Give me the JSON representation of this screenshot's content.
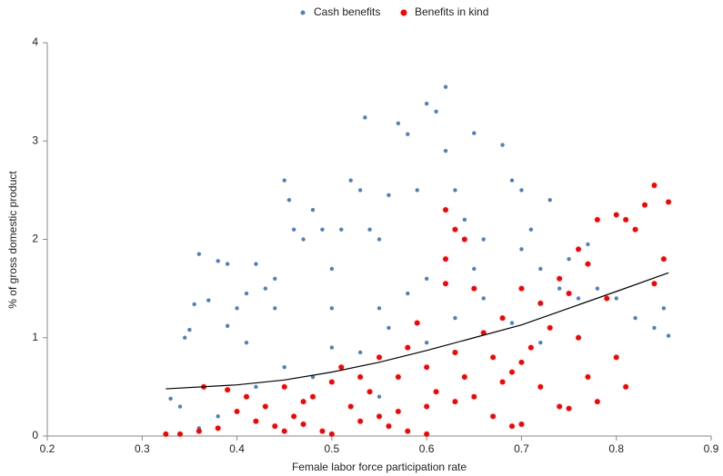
{
  "chart_data": {
    "type": "scatter",
    "x_label": "Female labor force participation rate",
    "y_label": "% of gross domestic product",
    "xlim": [
      0.2,
      0.9
    ],
    "xticks": [
      0.2,
      0.3,
      0.4,
      0.5,
      0.6,
      0.7,
      0.8,
      0.9
    ],
    "ylim": [
      0,
      4
    ],
    "yticks": [
      0,
      1,
      2,
      3,
      4
    ],
    "grid": false,
    "legend": "top",
    "series": [
      {
        "name": "Cash benefits",
        "color": "#4f81bd",
        "x": [
          0.33,
          0.34,
          0.345,
          0.35,
          0.355,
          0.36,
          0.37,
          0.38,
          0.39,
          0.39,
          0.4,
          0.41,
          0.41,
          0.42,
          0.43,
          0.44,
          0.44,
          0.45,
          0.455,
          0.46,
          0.47,
          0.48,
          0.49,
          0.5,
          0.5,
          0.51,
          0.52,
          0.53,
          0.535,
          0.54,
          0.55,
          0.56,
          0.57,
          0.58,
          0.59,
          0.6,
          0.61,
          0.62,
          0.62,
          0.63,
          0.64,
          0.65,
          0.66,
          0.68,
          0.69,
          0.7,
          0.7,
          0.71,
          0.72,
          0.73,
          0.74,
          0.75,
          0.76,
          0.77,
          0.78,
          0.8,
          0.82,
          0.84,
          0.85,
          0.855,
          0.6,
          0.62,
          0.65,
          0.58,
          0.55,
          0.5,
          0.45,
          0.42,
          0.48,
          0.53,
          0.56,
          0.6,
          0.66,
          0.69,
          0.72,
          0.36,
          0.38,
          0.55,
          0.63
        ],
        "values": [
          0.38,
          0.3,
          1.0,
          1.08,
          1.34,
          1.85,
          1.38,
          1.78,
          1.75,
          1.12,
          1.3,
          1.45,
          0.95,
          1.75,
          1.5,
          1.6,
          1.3,
          2.6,
          2.4,
          2.1,
          2.0,
          2.3,
          2.1,
          1.7,
          1.3,
          2.1,
          2.6,
          2.5,
          3.24,
          2.1,
          2.0,
          2.45,
          3.18,
          3.07,
          2.5,
          3.38,
          3.3,
          3.55,
          2.9,
          2.5,
          2.2,
          3.08,
          2.0,
          2.96,
          2.6,
          2.5,
          1.9,
          2.1,
          1.7,
          2.4,
          1.5,
          1.8,
          1.4,
          1.95,
          1.5,
          1.4,
          1.2,
          1.1,
          1.3,
          1.02,
          1.6,
          1.8,
          1.7,
          1.45,
          1.3,
          0.9,
          0.7,
          0.5,
          0.6,
          0.85,
          1.1,
          0.95,
          1.4,
          1.15,
          0.95,
          0.08,
          0.2,
          0.4,
          1.2
        ]
      },
      {
        "name": "Benefits in kind",
        "color": "#ff0000",
        "x": [
          0.325,
          0.34,
          0.36,
          0.365,
          0.38,
          0.39,
          0.4,
          0.41,
          0.42,
          0.43,
          0.44,
          0.45,
          0.46,
          0.47,
          0.48,
          0.49,
          0.5,
          0.51,
          0.52,
          0.53,
          0.54,
          0.55,
          0.56,
          0.57,
          0.58,
          0.59,
          0.6,
          0.6,
          0.61,
          0.62,
          0.62,
          0.63,
          0.64,
          0.62,
          0.63,
          0.64,
          0.65,
          0.66,
          0.67,
          0.67,
          0.68,
          0.69,
          0.7,
          0.7,
          0.71,
          0.72,
          0.72,
          0.73,
          0.74,
          0.74,
          0.75,
          0.75,
          0.76,
          0.77,
          0.77,
          0.78,
          0.78,
          0.79,
          0.8,
          0.81,
          0.82,
          0.83,
          0.84,
          0.855,
          0.85,
          0.84,
          0.8,
          0.81,
          0.76,
          0.68,
          0.65,
          0.55,
          0.45,
          0.5,
          0.58,
          0.6,
          0.53,
          0.47,
          0.57,
          0.63,
          0.7,
          0.69
        ],
        "values": [
          0.02,
          0.02,
          0.05,
          0.5,
          0.08,
          0.47,
          0.25,
          0.4,
          0.15,
          0.3,
          0.1,
          0.5,
          0.2,
          0.12,
          0.4,
          0.05,
          0.55,
          0.7,
          0.3,
          0.15,
          0.45,
          0.8,
          0.1,
          0.6,
          0.9,
          1.15,
          0.3,
          0.7,
          0.45,
          2.3,
          1.8,
          2.1,
          2.0,
          1.55,
          0.35,
          0.6,
          0.4,
          1.05,
          0.8,
          0.2,
          0.55,
          0.1,
          0.75,
          0.12,
          0.9,
          1.35,
          0.5,
          1.1,
          0.3,
          1.6,
          0.28,
          1.45,
          1.9,
          1.75,
          0.6,
          0.35,
          2.2,
          1.4,
          2.25,
          2.2,
          2.1,
          2.35,
          2.55,
          2.38,
          1.8,
          1.55,
          0.8,
          0.5,
          1.0,
          1.2,
          1.5,
          0.2,
          0.05,
          0.02,
          0.05,
          0.02,
          0.6,
          0.35,
          0.25,
          0.85,
          1.5,
          0.65
        ]
      }
    ],
    "trend": {
      "color": "#000000",
      "x": [
        0.325,
        0.4,
        0.45,
        0.5,
        0.55,
        0.6,
        0.65,
        0.7,
        0.75,
        0.8,
        0.855
      ],
      "values": [
        0.48,
        0.52,
        0.57,
        0.65,
        0.75,
        0.87,
        1.0,
        1.13,
        1.3,
        1.47,
        1.66
      ]
    }
  }
}
